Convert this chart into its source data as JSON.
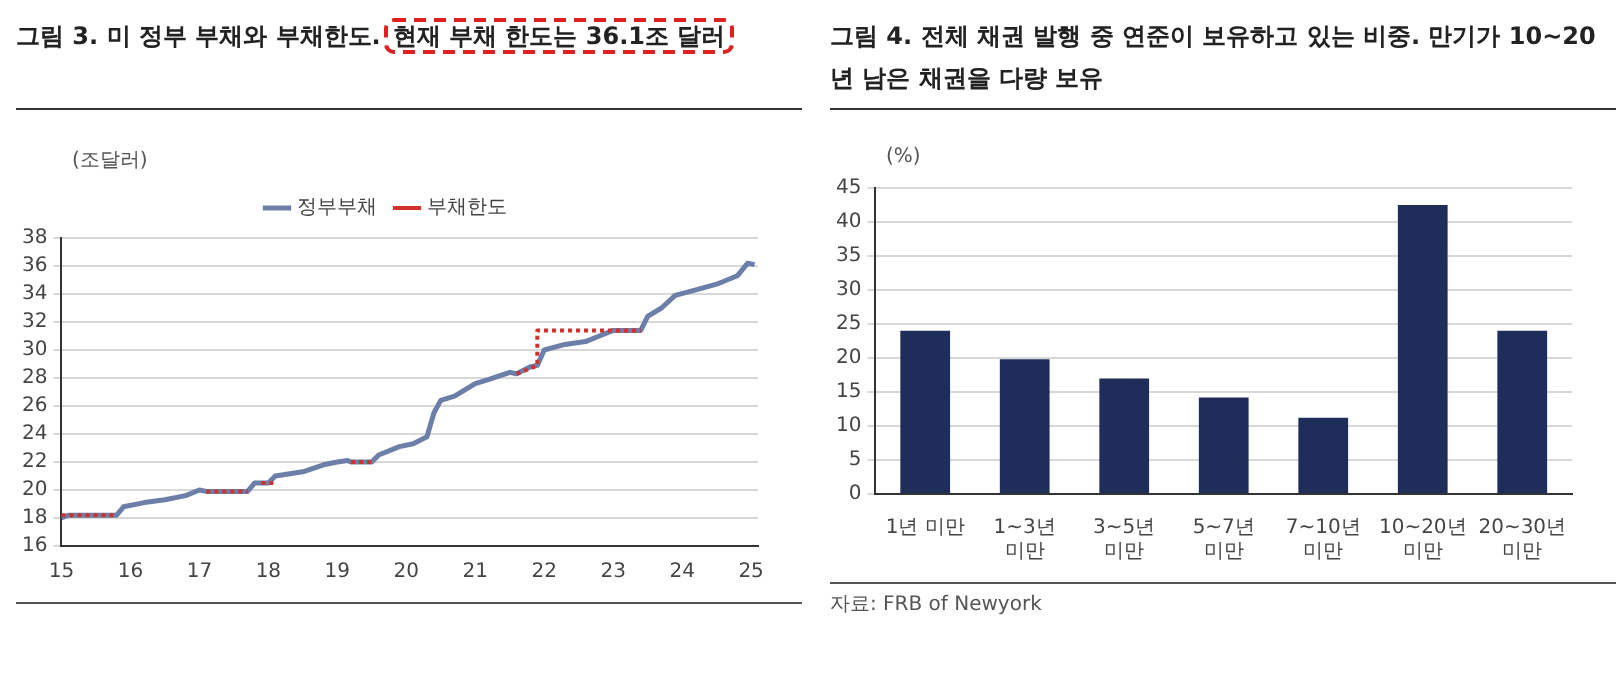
{
  "chart_data": [
    {
      "type": "line",
      "title": "그림 3. 미 정부 부채와 부채한도.",
      "subtitle": "현재 부채 한도는 36.1조 달러",
      "ylabel": "(조달러)",
      "xlim": [
        15,
        25.1
      ],
      "xticks": [
        15,
        16,
        17,
        18,
        19,
        20,
        21,
        22,
        23,
        24,
        25
      ],
      "ylim": [
        16,
        38
      ],
      "yticks": [
        16,
        18,
        20,
        22,
        24,
        26,
        28,
        30,
        32,
        34,
        36,
        38
      ],
      "grid": "y",
      "legend": "top",
      "marker": "none",
      "series": [
        {
          "name": "정부부채",
          "color": "#6b7fa8",
          "line_style": "solid",
          "x": [
            15.0,
            15.1,
            15.8,
            15.9,
            16.2,
            16.5,
            16.8,
            17.0,
            17.1,
            17.7,
            17.8,
            18.0,
            18.1,
            18.5,
            18.8,
            19.0,
            19.15,
            19.2,
            19.5,
            19.6,
            19.9,
            20.1,
            20.3,
            20.4,
            20.5,
            20.7,
            21.0,
            21.2,
            21.5,
            21.6,
            21.8,
            21.9,
            22.0,
            22.3,
            22.6,
            22.8,
            23.0,
            23.4,
            23.5,
            23.7,
            23.9,
            24.2,
            24.5,
            24.8,
            24.95,
            25.05
          ],
          "values": [
            18.0,
            18.2,
            18.2,
            18.8,
            19.1,
            19.3,
            19.6,
            20.0,
            19.9,
            19.9,
            20.5,
            20.5,
            21.0,
            21.3,
            21.8,
            22.0,
            22.1,
            22.0,
            22.0,
            22.5,
            23.1,
            23.3,
            23.8,
            25.5,
            26.4,
            26.7,
            27.6,
            27.9,
            28.4,
            28.3,
            28.8,
            28.9,
            30.0,
            30.4,
            30.6,
            31.0,
            31.4,
            31.4,
            32.4,
            33.0,
            33.9,
            34.3,
            34.7,
            35.3,
            36.2,
            36.1
          ]
        },
        {
          "name": "부채한도",
          "color": "#d0312d",
          "line_style": "dotted",
          "x": [
            15.0,
            15.8,
            16.5,
            17.1,
            17.7,
            17.8,
            17.9,
            18.1,
            18.6,
            19.2,
            19.5,
            20.5,
            21.6,
            21.9,
            21.9,
            23.4
          ],
          "values": [
            18.2,
            18.2,
            null,
            19.9,
            19.9,
            null,
            20.5,
            20.5,
            null,
            22.0,
            22.0,
            null,
            28.3,
            28.9,
            31.4,
            31.4
          ]
        }
      ]
    },
    {
      "type": "bar",
      "title": "그림 4. 전체 채권 발행 중 연준이 보유하고 있는 비중. 만기가 10~20년 남은 채권을 다량 보유",
      "ylabel": "(%)",
      "categories": [
        "1년 미만",
        "1~3년\n미만",
        "3~5년\n미만",
        "5~7년\n미만",
        "7~10년\n미만",
        "10~20년\n미만",
        "20~30년\n미만"
      ],
      "values": [
        24,
        19.8,
        17,
        14.2,
        11.2,
        42.5,
        24
      ],
      "color": "#1f2d5a",
      "ylim": [
        0,
        45
      ],
      "yticks": [
        0,
        5,
        10,
        15,
        20,
        25,
        30,
        35,
        40,
        45
      ],
      "grid": "y",
      "legend": false,
      "annotations": [
        "자료: FRB of Newyork"
      ]
    }
  ]
}
